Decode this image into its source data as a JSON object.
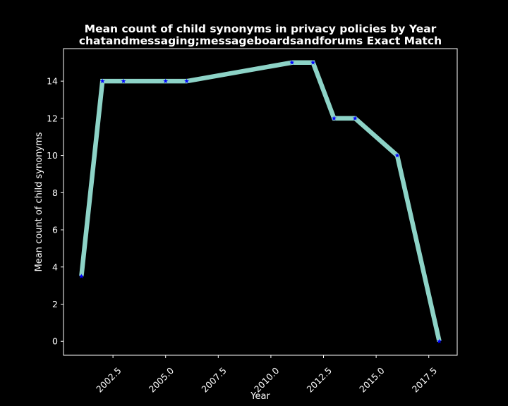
{
  "chart_data": {
    "type": "line",
    "title_line1": "Mean count of child synonyms in privacy policies by Year",
    "title_line2": "chatandmessaging;messageboardsandforums Exact Match",
    "xlabel": "Year",
    "ylabel": "Mean count of child synonyms",
    "x": [
      2001,
      2002,
      2003,
      2005,
      2006,
      2011,
      2012,
      2013,
      2014,
      2016,
      2018
    ],
    "y": [
      3.5,
      14,
      14,
      14,
      14,
      15,
      15,
      12,
      12,
      10,
      0
    ],
    "xlim": [
      2000.15,
      2018.85
    ],
    "ylim": [
      -0.75,
      15.75
    ],
    "xticks": [
      2002.5,
      2005.0,
      2007.5,
      2010.0,
      2012.5,
      2015.0,
      2017.5
    ],
    "xtick_labels": [
      "2002.5",
      "2005.0",
      "2007.5",
      "2010.0",
      "2012.5",
      "2015.0",
      "2017.5"
    ],
    "yticks": [
      0,
      2,
      4,
      6,
      8,
      10,
      12,
      14
    ],
    "ytick_labels": [
      "0",
      "2",
      "4",
      "6",
      "8",
      "10",
      "12",
      "14"
    ],
    "grid": false,
    "line_color": "#8dd3c7",
    "marker_color": "#0000ff",
    "marker": "star",
    "background": "#000000",
    "text_color": "#ffffff"
  }
}
